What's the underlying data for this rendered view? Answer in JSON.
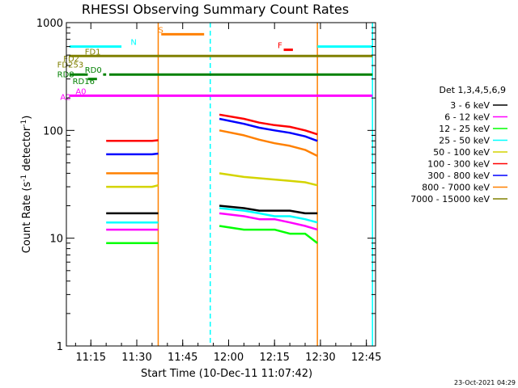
{
  "chart_data": {
    "type": "line",
    "title": "RHESSI Observing Summary Count Rates",
    "xlabel": "Start Time (10-Dec-11 11:07:42)",
    "ylabel": "Count Rate (s⁻¹ detector⁻¹)",
    "ylabel_main": "Count Rate (s",
    "ylabel_sup1": "-1",
    "ylabel_mid": " detector",
    "ylabel_sup2": "-1",
    "ylabel_end": ")",
    "x_start": "11:07:42",
    "xlim": [
      "11:07",
      "12:48"
    ],
    "ylim": [
      1,
      1000
    ],
    "y_scale": "log",
    "x_ticks": [
      "11:15",
      "11:30",
      "11:45",
      "12:00",
      "12:15",
      "12:30",
      "12:45"
    ],
    "y_ticks": [
      "1",
      "10",
      "100",
      "1000"
    ],
    "legend": {
      "title": "Det 1,3,4,5,6,9",
      "placement": "right"
    },
    "gaps": [
      [
        "11:37",
        "11:54"
      ],
      [
        "12:29",
        "12:47"
      ]
    ],
    "series": [
      {
        "name": "3 - 6 keV",
        "color": "#000000",
        "segments": [
          {
            "x": [
              "11:20",
              "11:25",
              "11:30",
              "11:35",
              "11:37"
            ],
            "y": [
              17,
              17,
              17,
              17,
              17
            ]
          },
          {
            "x": [
              "11:57",
              "12:05",
              "12:10",
              "12:15",
              "12:20",
              "12:25",
              "12:29"
            ],
            "y": [
              20,
              19,
              18,
              18,
              18,
              17,
              17
            ]
          }
        ]
      },
      {
        "name": "6 - 12 keV",
        "color": "#ff00ff",
        "segments": [
          {
            "x": [
              "11:20",
              "11:25",
              "11:30",
              "11:35",
              "11:37"
            ],
            "y": [
              12,
              12,
              12,
              12,
              12
            ]
          },
          {
            "x": [
              "11:57",
              "12:05",
              "12:10",
              "12:15",
              "12:20",
              "12:25",
              "12:29"
            ],
            "y": [
              17,
              16,
              15,
              15,
              14,
              13,
              12
            ]
          }
        ]
      },
      {
        "name": "12 - 25 keV",
        "color": "#00ff00",
        "segments": [
          {
            "x": [
              "11:20",
              "11:25",
              "11:30",
              "11:35",
              "11:37"
            ],
            "y": [
              9,
              9,
              9,
              9,
              9
            ]
          },
          {
            "x": [
              "11:57",
              "12:05",
              "12:10",
              "12:15",
              "12:20",
              "12:25",
              "12:29"
            ],
            "y": [
              13,
              12,
              12,
              12,
              11,
              11,
              9
            ]
          }
        ]
      },
      {
        "name": "25 - 50 keV",
        "color": "#00ffff",
        "segments": [
          {
            "x": [
              "11:20",
              "11:25",
              "11:30",
              "11:35",
              "11:37"
            ],
            "y": [
              14,
              14,
              14,
              14,
              14
            ]
          },
          {
            "x": [
              "11:57",
              "12:05",
              "12:10",
              "12:15",
              "12:20",
              "12:25",
              "12:29"
            ],
            "y": [
              19,
              18,
              17,
              16,
              16,
              15,
              14
            ]
          }
        ]
      },
      {
        "name": "50 - 100 keV",
        "color": "#d4d400",
        "segments": [
          {
            "x": [
              "11:20",
              "11:25",
              "11:30",
              "11:35",
              "11:37"
            ],
            "y": [
              30,
              30,
              30,
              30,
              31
            ]
          },
          {
            "x": [
              "11:57",
              "12:05",
              "12:10",
              "12:15",
              "12:20",
              "12:25",
              "12:29"
            ],
            "y": [
              40,
              37,
              36,
              35,
              34,
              33,
              31
            ]
          }
        ]
      },
      {
        "name": "100 - 300 keV",
        "color": "#ff0000",
        "segments": [
          {
            "x": [
              "11:20",
              "11:25",
              "11:30",
              "11:35",
              "11:37"
            ],
            "y": [
              80,
              80,
              80,
              80,
              81
            ]
          },
          {
            "x": [
              "11:57",
              "12:05",
              "12:10",
              "12:15",
              "12:20",
              "12:25",
              "12:29"
            ],
            "y": [
              140,
              128,
              118,
              112,
              108,
              100,
              92
            ]
          }
        ]
      },
      {
        "name": "300 - 800 keV",
        "color": "#0000ff",
        "segments": [
          {
            "x": [
              "11:20",
              "11:25",
              "11:30",
              "11:35",
              "11:37"
            ],
            "y": [
              60,
              60,
              60,
              60,
              61
            ]
          },
          {
            "x": [
              "11:57",
              "12:05",
              "12:10",
              "12:15",
              "12:20",
              "12:25",
              "12:29"
            ],
            "y": [
              128,
              115,
              106,
              100,
              95,
              88,
              80
            ]
          }
        ]
      },
      {
        "name": "800 - 7000 keV",
        "color": "#ff8000",
        "segments": [
          {
            "x": [
              "11:20",
              "11:25",
              "11:30",
              "11:35",
              "11:37"
            ],
            "y": [
              40,
              40,
              40,
              40,
              40
            ]
          },
          {
            "x": [
              "11:57",
              "12:05",
              "12:10",
              "12:15",
              "12:20",
              "12:25",
              "12:29"
            ],
            "y": [
              100,
              90,
              82,
              76,
              72,
              66,
              58
            ]
          }
        ]
      },
      {
        "name": "7000 - 15000 keV",
        "color": "#808000",
        "segments": []
      }
    ],
    "flags": [
      {
        "label": "N",
        "color": "#00ffff",
        "label_x": "11:28",
        "value": 600,
        "segments": [
          [
            "11:08",
            "11:25"
          ],
          [
            "12:29",
            "12:47"
          ]
        ]
      },
      {
        "label": "S",
        "color": "#ff8000",
        "label_x": "11:37",
        "value": 780,
        "segments": [
          [
            "11:38",
            "11:52"
          ]
        ]
      },
      {
        "label": "F",
        "color": "#ff0000",
        "label_x": "12:16",
        "value": 560,
        "segments": [
          [
            "12:18",
            "12:21"
          ]
        ]
      },
      {
        "label": "FD1",
        "color": "#808000",
        "label_x": "11:13",
        "value": 490,
        "segments": [
          [
            "11:08",
            "12:47"
          ]
        ]
      },
      {
        "label": "FD2",
        "color": "#808000",
        "label_x": "11:06",
        "value": 420,
        "segments": []
      },
      {
        "label": "FD253",
        "color": "#808000",
        "label_x": "11:04",
        "value": 370,
        "segments": []
      },
      {
        "label": "RD0",
        "color": "#008000",
        "label_x": "11:13",
        "value": 330,
        "segments": [
          [
            "11:08",
            "11:14"
          ],
          [
            "11:19",
            "11:20"
          ],
          [
            "11:21",
            "12:47"
          ]
        ]
      },
      {
        "label": "RD8",
        "color": "#008000",
        "label_x": "11:04",
        "value": 300,
        "segments": [
          [
            "11:14",
            "11:17"
          ]
        ]
      },
      {
        "label": "RD16",
        "color": "#008000",
        "label_x": "11:09",
        "value": 260,
        "segments": []
      },
      {
        "label": "A0",
        "color": "#ff00ff",
        "label_x": "11:10",
        "value": 210,
        "segments": [
          [
            "11:08",
            "12:47"
          ]
        ]
      },
      {
        "label": "A2",
        "color": "#ff00ff",
        "label_x": "11:05",
        "value": 185,
        "segments": []
      }
    ]
  },
  "timestamp": "23-Oct-2021 04:29"
}
